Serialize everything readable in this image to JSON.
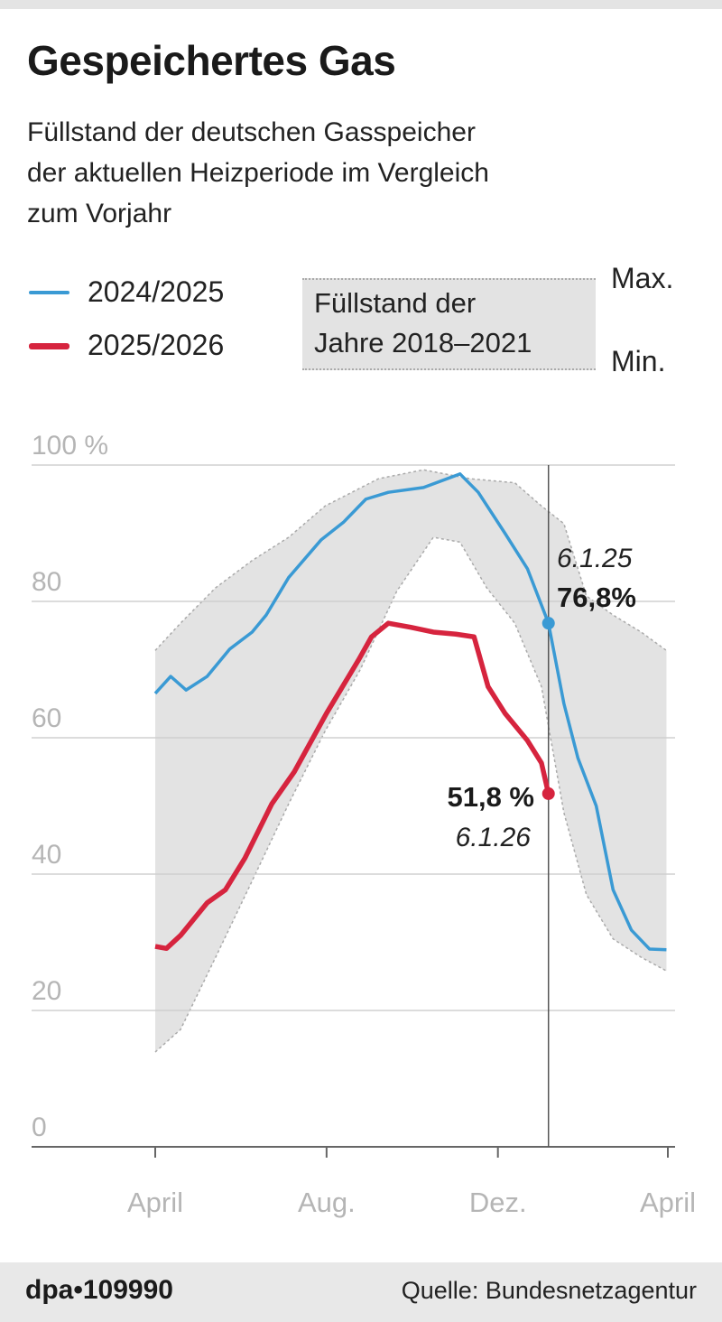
{
  "header": {
    "title": "Gespeichertes Gas",
    "subtitle_lines": [
      "Füllstand der deutschen Gasspeicher",
      "der aktuellen Heizperiode im Vergleich",
      "zum Vorjahr"
    ]
  },
  "legend": {
    "series1": "2024/2025",
    "series2": "2025/2026",
    "band_line1": "Füllstand der",
    "band_line2": "Jahre 2018–2021",
    "max_label": "Max.",
    "min_label": "Min."
  },
  "footer": {
    "agency": "dpa•109990",
    "source": "Quelle: Bundesnetzagentur"
  },
  "chart_data": {
    "type": "line",
    "title": "Gespeichertes Gas",
    "ylim": [
      0,
      100
    ],
    "yticks": [
      {
        "value": 100,
        "label": "100 %"
      },
      {
        "value": 80,
        "label": "80"
      },
      {
        "value": 60,
        "label": "60"
      },
      {
        "value": 40,
        "label": "40"
      },
      {
        "value": 20,
        "label": "20"
      },
      {
        "value": 0,
        "label": "0"
      }
    ],
    "xticks": [
      {
        "date": "01.04.",
        "label": "April"
      },
      {
        "date": "01.08.",
        "label": "Aug."
      },
      {
        "date": "01.12.",
        "label": "Dez."
      },
      {
        "date": "01.04.+",
        "label": "April"
      }
    ],
    "grid": true,
    "colors": {
      "series1": "#3a9ad4",
      "series2": "#d6243e",
      "band": "#e3e3e3"
    },
    "marker_date": "06.01.",
    "band": {
      "name": "Füllstand der Jahre 2018–2021",
      "max": [
        {
          "x": "01.04.",
          "y": 72.8
        },
        {
          "x": "19.04.",
          "y": 76.8
        },
        {
          "x": "14.05.",
          "y": 82
        },
        {
          "x": "09.06.",
          "y": 86
        },
        {
          "x": "05.07.",
          "y": 89.4
        },
        {
          "x": "31.07.",
          "y": 94
        },
        {
          "x": "07.09.",
          "y": 98
        },
        {
          "x": "09.10.",
          "y": 99.3
        },
        {
          "x": "11.11.",
          "y": 98
        },
        {
          "x": "13.12.",
          "y": 97.4
        },
        {
          "x": "01.01.",
          "y": 94
        },
        {
          "x": "17.01.",
          "y": 91.4
        },
        {
          "x": "02.02.",
          "y": 80.8
        },
        {
          "x": "21.02.",
          "y": 78
        },
        {
          "x": "13.03.",
          "y": 75.5
        },
        {
          "x": "31.03.",
          "y": 72.8
        }
      ],
      "min": [
        {
          "x": "01.04.",
          "y": 13.9
        },
        {
          "x": "19.04.",
          "y": 17.2
        },
        {
          "x": "14.05.",
          "y": 27.8
        },
        {
          "x": "09.06.",
          "y": 39
        },
        {
          "x": "05.07.",
          "y": 50.3
        },
        {
          "x": "31.07.",
          "y": 61
        },
        {
          "x": "25.08.",
          "y": 70
        },
        {
          "x": "20.09.",
          "y": 81.5
        },
        {
          "x": "16.10.",
          "y": 89.4
        },
        {
          "x": "04.11.",
          "y": 88.7
        },
        {
          "x": "23.11.",
          "y": 82
        },
        {
          "x": "13.12.",
          "y": 76.8
        },
        {
          "x": "01.01.",
          "y": 67.5
        },
        {
          "x": "17.01.",
          "y": 49
        },
        {
          "x": "02.02.",
          "y": 37
        },
        {
          "x": "21.02.",
          "y": 30.5
        },
        {
          "x": "13.03.",
          "y": 27.8
        },
        {
          "x": "31.03.",
          "y": 25.8
        }
      ]
    },
    "series": [
      {
        "name": "2024/2025",
        "points": [
          {
            "x": "01.04.",
            "y": 66.5
          },
          {
            "x": "12.04.",
            "y": 69
          },
          {
            "x": "23.04.",
            "y": 67
          },
          {
            "x": "08.05.",
            "y": 69
          },
          {
            "x": "24.05.",
            "y": 73
          },
          {
            "x": "09.06.",
            "y": 75.5
          },
          {
            "x": "19.06.",
            "y": 78
          },
          {
            "x": "05.07.",
            "y": 83.5
          },
          {
            "x": "28.07.",
            "y": 89
          },
          {
            "x": "13.08.",
            "y": 91.6
          },
          {
            "x": "29.08.",
            "y": 95
          },
          {
            "x": "14.09.",
            "y": 96
          },
          {
            "x": "09.10.",
            "y": 96.7
          },
          {
            "x": "04.11.",
            "y": 98.7
          },
          {
            "x": "17.11.",
            "y": 96
          },
          {
            "x": "06.12.",
            "y": 90
          },
          {
            "x": "22.12.",
            "y": 84.8
          },
          {
            "x": "06.01.",
            "y": 76.8
          },
          {
            "x": "17.01.",
            "y": 65
          },
          {
            "x": "27.01.",
            "y": 57
          },
          {
            "x": "09.02.",
            "y": 50
          },
          {
            "x": "21.02.",
            "y": 37.7
          },
          {
            "x": "06.03.",
            "y": 31.8
          },
          {
            "x": "19.03.",
            "y": 29
          },
          {
            "x": "31.03.",
            "y": 28.9
          }
        ],
        "annotation": {
          "date": "6.1.25",
          "value": "76,8%"
        }
      },
      {
        "name": "2025/2026",
        "points": [
          {
            "x": "01.04.",
            "y": 29.4
          },
          {
            "x": "09.04.",
            "y": 29.1
          },
          {
            "x": "19.04.",
            "y": 31
          },
          {
            "x": "08.05.",
            "y": 35.8
          },
          {
            "x": "21.05.",
            "y": 37.7
          },
          {
            "x": "04.06.",
            "y": 42.4
          },
          {
            "x": "23.06.",
            "y": 50.3
          },
          {
            "x": "09.07.",
            "y": 55
          },
          {
            "x": "01.08.",
            "y": 63.6
          },
          {
            "x": "24.08.",
            "y": 71.5
          },
          {
            "x": "02.09.",
            "y": 74.8
          },
          {
            "x": "14.09.",
            "y": 76.8
          },
          {
            "x": "30.09.",
            "y": 76.2
          },
          {
            "x": "16.10.",
            "y": 75.5
          },
          {
            "x": "01.11.",
            "y": 75.2
          },
          {
            "x": "14.11.",
            "y": 74.8
          },
          {
            "x": "24.11.",
            "y": 67.5
          },
          {
            "x": "06.12.",
            "y": 63.6
          },
          {
            "x": "22.12.",
            "y": 59.6
          },
          {
            "x": "01.01.",
            "y": 56.3
          },
          {
            "x": "06.01.",
            "y": 51.8
          }
        ],
        "annotation": {
          "date": "6.1.26",
          "value": "51,8 %"
        }
      }
    ]
  }
}
